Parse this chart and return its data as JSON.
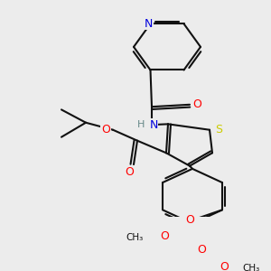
{
  "bg_color": "#ececec",
  "colors": {
    "N": "#0000dd",
    "S": "#cccc00",
    "O": "#ff0000",
    "C": "#111111",
    "H": "#668888"
  },
  "lw": 1.5,
  "fs": 9.0,
  "sfs": 7.5
}
